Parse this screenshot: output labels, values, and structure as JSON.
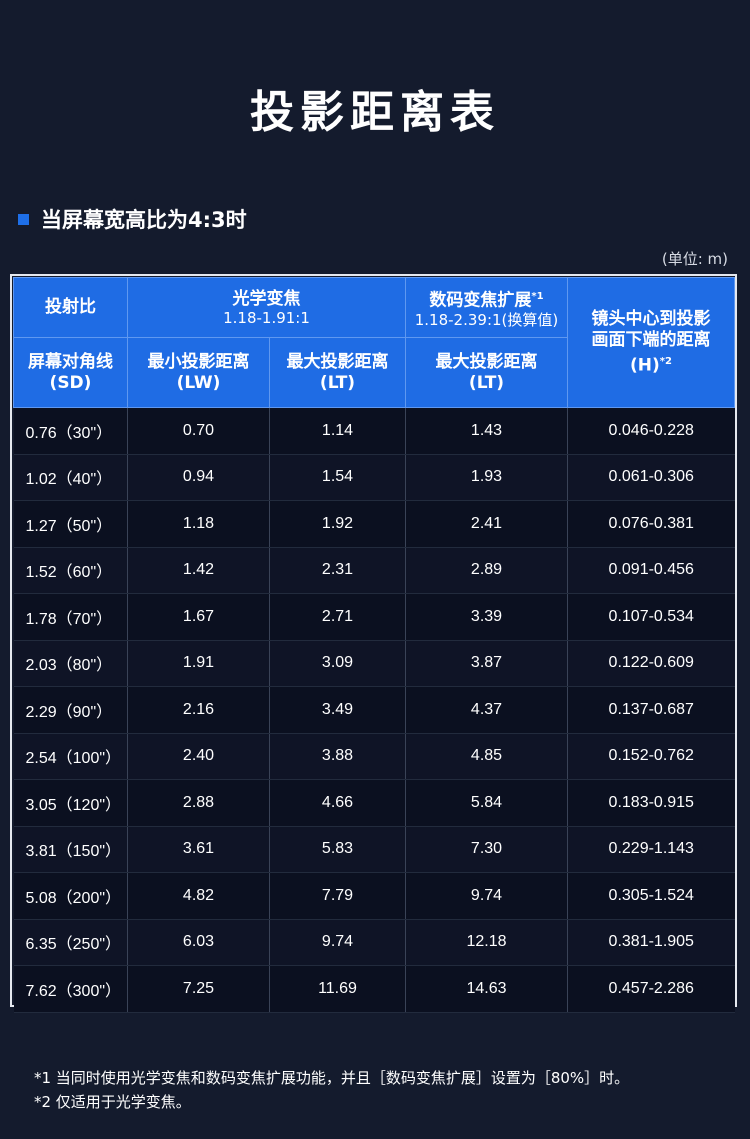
{
  "title": "投影距离表",
  "section": {
    "heading": "当屏幕宽高比为4:3时"
  },
  "unit": "(单位: m)",
  "table": {
    "header": {
      "throw_ratio_label": "投射比",
      "optical_zoom_label": "光学变焦",
      "optical_zoom_range": "1.18-1.91:1",
      "digital_zoom_label": "数码变焦扩展",
      "digital_zoom_note_mark": "*1",
      "digital_zoom_range": "1.18-2.39:1(换算值)",
      "lens_offset_label_1": "镜头中心到投影",
      "lens_offset_label_2": "画面下端的距离",
      "lens_offset_label_3": "(H)",
      "lens_offset_note_mark": "*2",
      "screen_label": "屏幕对角线",
      "screen_unit": "(SD)",
      "min_dist_label": "最小投影距离",
      "min_dist_unit": "(LW)",
      "max_dist_label": "最大投影距离",
      "max_dist_unit": "(LT)",
      "digital_max_label": "最大投影距离",
      "digital_max_unit": "(LT)"
    },
    "rows": [
      [
        "0.76（30\"）",
        "0.70",
        "1.14",
        "1.43",
        "0.046-0.228"
      ],
      [
        "1.02（40\"）",
        "0.94",
        "1.54",
        "1.93",
        "0.061-0.306"
      ],
      [
        "1.27（50\"）",
        "1.18",
        "1.92",
        "2.41",
        "0.076-0.381"
      ],
      [
        "1.52（60\"）",
        "1.42",
        "2.31",
        "2.89",
        "0.091-0.456"
      ],
      [
        "1.78（70\"）",
        "1.67",
        "2.71",
        "3.39",
        "0.107-0.534"
      ],
      [
        "2.03（80\"）",
        "1.91",
        "3.09",
        "3.87",
        "0.122-0.609"
      ],
      [
        "2.29（90\"）",
        "2.16",
        "3.49",
        "4.37",
        "0.137-0.687"
      ],
      [
        "2.54（100\"）",
        "2.40",
        "3.88",
        "4.85",
        "0.152-0.762"
      ],
      [
        "3.05（120\"）",
        "2.88",
        "4.66",
        "5.84",
        "0.183-0.915"
      ],
      [
        "3.81（150\"）",
        "3.61",
        "5.83",
        "7.30",
        "0.229-1.143"
      ],
      [
        "5.08（200\"）",
        "4.82",
        "7.79",
        "9.74",
        "0.305-1.524"
      ],
      [
        "6.35（250\"）",
        "6.03",
        "9.74",
        "12.18",
        "0.381-1.905"
      ],
      [
        "7.62（300\"）",
        "7.25",
        "11.69",
        "14.63",
        "0.457-2.286"
      ]
    ]
  },
  "footnotes": [
    "*1 当同时使用光学变焦和数码变焦扩展功能，并且［数码变焦扩展］设置为［80%］时。",
    "*2 仅适用于光学变焦。"
  ],
  "colors": {
    "background": "#141b2d",
    "header_blue": "#1f6ce4",
    "bullet_blue": "#1e6fe8"
  }
}
